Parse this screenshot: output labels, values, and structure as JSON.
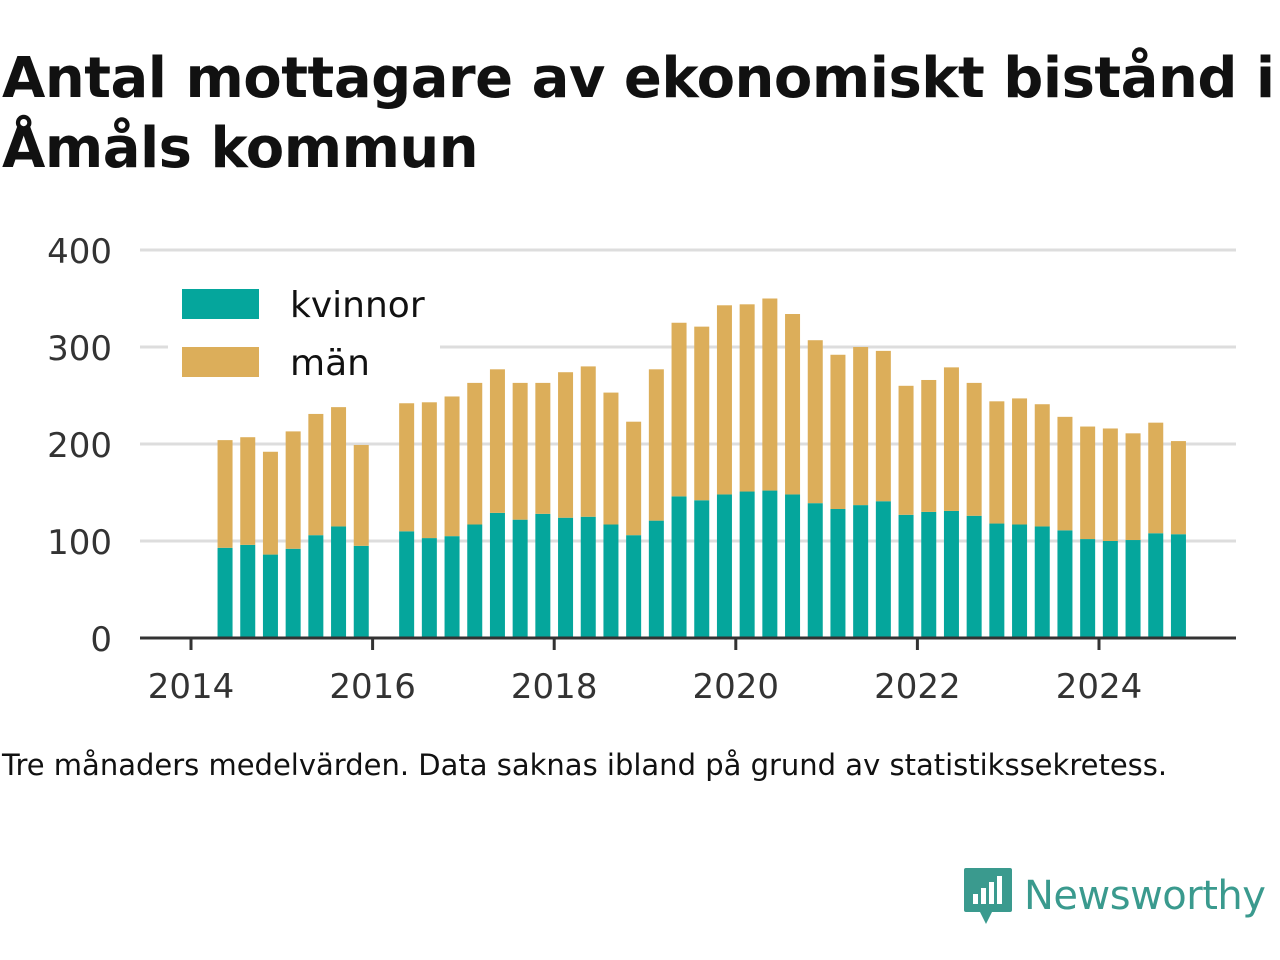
{
  "title": "Antal mottagare av ekonomiskt bistånd i Åmåls kommun",
  "note": "Tre månaders medelvärden. Data saknas ibland på grund av statistikssekretess.",
  "brand": "Newsworthy",
  "colors": {
    "kvinnor": "#05a69c",
    "man": "#dcae5a",
    "grid": "#dddddd",
    "axis": "#333333",
    "brand": "#3a9a8e"
  },
  "chart_data": {
    "type": "bar",
    "stacked": true,
    "x_ticks": [
      "2014",
      "2016",
      "2018",
      "2020",
      "2022",
      "2024"
    ],
    "y_ticks": [
      0,
      100,
      200,
      300,
      400
    ],
    "ylim": [
      0,
      400
    ],
    "legend_position": "top-left",
    "grid": true,
    "categories": [
      "2014-05",
      "2014-08",
      "2014-11",
      "2015-02",
      "2015-05",
      "2015-08",
      "2015-11",
      "2016-02",
      "2016-05",
      "2016-08",
      "2016-11",
      "2017-02",
      "2017-05",
      "2017-08",
      "2017-11",
      "2018-02",
      "2018-05",
      "2018-08",
      "2018-11",
      "2019-02",
      "2019-05",
      "2019-08",
      "2019-11",
      "2020-02",
      "2020-05",
      "2020-08",
      "2020-11",
      "2021-02",
      "2021-05",
      "2021-08",
      "2021-11",
      "2022-02",
      "2022-05",
      "2022-08",
      "2022-11",
      "2023-02",
      "2023-05",
      "2023-08",
      "2023-11",
      "2024-02",
      "2024-05",
      "2024-08",
      "2024-11"
    ],
    "series": [
      {
        "name": "kvinnor",
        "values": [
          93,
          96,
          86,
          92,
          106,
          115,
          95,
          null,
          110,
          103,
          105,
          117,
          129,
          122,
          128,
          124,
          125,
          117,
          106,
          121,
          146,
          142,
          148,
          151,
          152,
          148,
          139,
          133,
          137,
          141,
          127,
          130,
          131,
          126,
          118,
          117,
          115,
          111,
          102,
          100,
          101,
          108,
          107
        ]
      },
      {
        "name": "män",
        "values": [
          111,
          111,
          106,
          121,
          125,
          123,
          104,
          null,
          132,
          140,
          144,
          146,
          148,
          141,
          135,
          150,
          155,
          136,
          117,
          156,
          179,
          179,
          195,
          193,
          198,
          186,
          168,
          159,
          163,
          155,
          133,
          136,
          148,
          137,
          126,
          130,
          126,
          117,
          116,
          116,
          110,
          114,
          96
        ]
      }
    ]
  }
}
